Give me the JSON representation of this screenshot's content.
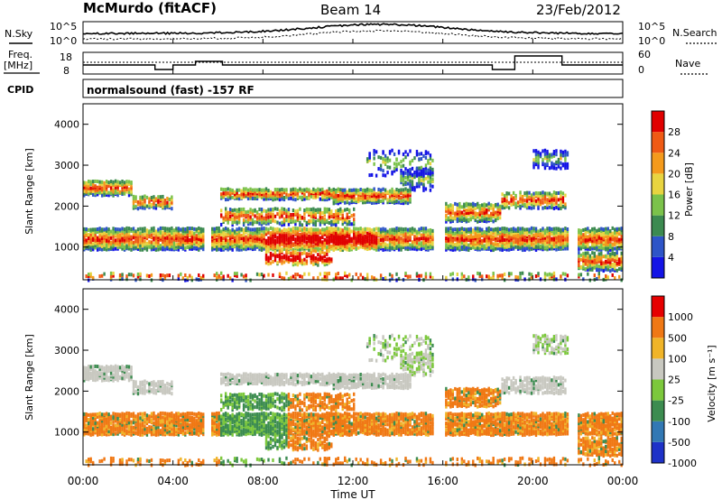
{
  "header": {
    "station": "McMurdo (fitACF)",
    "beam": "Beam 14",
    "date": "23/Feb/2012"
  },
  "noise_panel": {
    "left_label": "N.Sky",
    "right_label": "N.Search",
    "ticks_left": [
      "10^5",
      "10^0"
    ],
    "ticks_right": [
      "10^5",
      "10^0"
    ]
  },
  "freq_panel": {
    "left_label_top": "Freq.",
    "left_label_unit": "[MHz]",
    "right_label": "Nave",
    "ticks_left": [
      "18",
      "8"
    ],
    "ticks_right": [
      "60",
      "0"
    ]
  },
  "cpid": {
    "label": "CPID",
    "value": "normalsound (fast) -157 RF"
  },
  "chart_data": [
    {
      "type": "heatmap",
      "name": "power",
      "ylabel": "Slant Range [km]",
      "xlabel": "",
      "ylim": [
        200,
        4500
      ],
      "yticks": [
        "1000",
        "2000",
        "3000",
        "4000"
      ],
      "colorbar": {
        "label": "Power [dB]",
        "ticks": [
          "4",
          "8",
          "12",
          "16",
          "20",
          "24",
          "28"
        ],
        "colors": [
          "#1414e6",
          "#2e55c8",
          "#3c8a50",
          "#7bc24a",
          "#e8d440",
          "#f49a1c",
          "#ef5a14",
          "#e00000"
        ]
      }
    },
    {
      "type": "heatmap",
      "name": "velocity",
      "ylabel": "Slant Range [km]",
      "xlabel": "Time UT",
      "ylim": [
        200,
        4500
      ],
      "yticks": [
        "1000",
        "2000",
        "3000",
        "4000"
      ],
      "colorbar": {
        "label": "Velocity [m s⁻¹]",
        "ticks": [
          "1000",
          "500",
          "100",
          "25",
          "-25",
          "-100",
          "-500",
          "-1000"
        ],
        "colors": [
          "#1e32c8",
          "#3278b4",
          "#3c8c50",
          "#7cc83c",
          "#c8c8c0",
          "#f0b428",
          "#f07814",
          "#e60000"
        ]
      }
    }
  ],
  "x_axis": {
    "label": "Time UT",
    "ticks": [
      "00:00",
      "04:00",
      "08:00",
      "12:00",
      "16:00",
      "20:00",
      "00:00"
    ]
  }
}
